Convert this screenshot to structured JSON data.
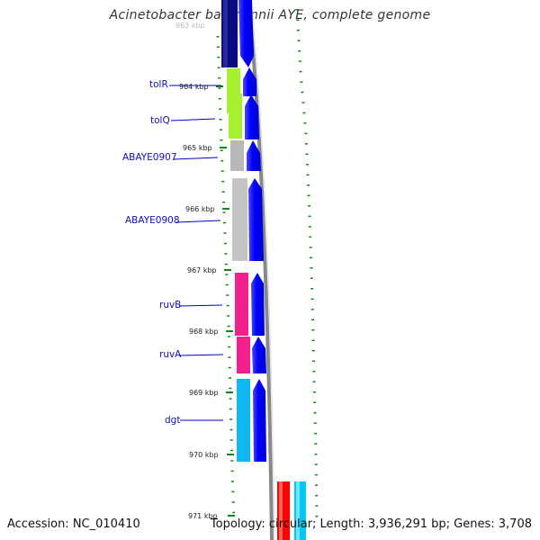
{
  "title": "Acinetobacter baumannii AYE, complete genome",
  "footer": {
    "accession": "Accession: NC_010410",
    "summary": "Topology: circular; Length: 3,936,291 bp; Genes: 3,708"
  },
  "ticks": [
    "963 kbp",
    "964 kbp",
    "965 kbp",
    "966 kbp",
    "967 kbp",
    "968 kbp",
    "969 kbp",
    "970 kbp",
    "971 kbp"
  ],
  "genes": [
    {
      "name": "",
      "color": "#0a0a80"
    },
    {
      "name": "tolR",
      "color": "#a6f030"
    },
    {
      "name": "tolQ",
      "color": "#a6f030"
    },
    {
      "name": "ABAYE0907",
      "color": "#b8b8b8"
    },
    {
      "name": "ABAYE0908",
      "color": "#c4c4c4"
    },
    {
      "name": "ruvB",
      "color": "#f0208c"
    },
    {
      "name": "ruvA",
      "color": "#f0208c"
    },
    {
      "name": "dgt",
      "color": "#10b8f0"
    }
  ],
  "colors": {
    "cds": "#0000ff",
    "backbone": "#808080",
    "gc_marks": "#118811",
    "label_line": "#0000cc",
    "red_feature": "#ff0000",
    "cyan_feature": "#00c8f0"
  }
}
